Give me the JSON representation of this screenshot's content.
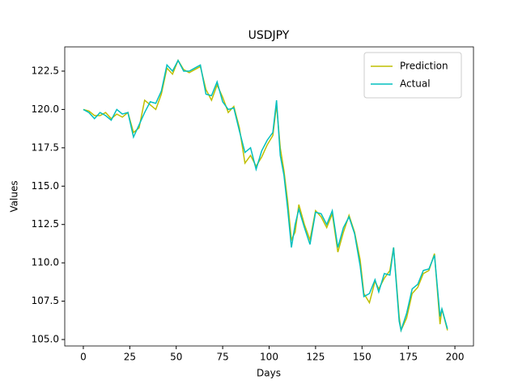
{
  "chart_data": {
    "type": "line",
    "title": "USDJPY",
    "x_label": "Days",
    "y_label": "Values",
    "x": [
      0,
      3,
      6,
      9,
      12,
      15,
      18,
      21,
      24,
      27,
      30,
      33,
      36,
      39,
      42,
      45,
      48,
      51,
      54,
      57,
      60,
      63,
      66,
      69,
      72,
      75,
      78,
      81,
      84,
      87,
      90,
      93,
      96,
      99,
      102,
      104,
      106,
      108,
      110,
      112,
      114,
      116,
      119,
      122,
      125,
      128,
      131,
      134,
      137,
      140,
      143,
      146,
      149,
      151,
      154,
      157,
      159,
      162,
      165,
      167,
      170,
      171,
      174,
      177,
      180,
      183,
      186,
      189,
      192,
      193,
      196
    ],
    "series": [
      {
        "name": "Prediction",
        "color": "#bfbf00",
        "values": [
          120.0,
          119.9,
          119.6,
          119.6,
          119.8,
          119.4,
          119.7,
          119.5,
          119.8,
          118.5,
          118.8,
          120.6,
          120.3,
          120.0,
          121.0,
          122.7,
          122.3,
          123.2,
          122.6,
          122.4,
          122.6,
          122.8,
          121.3,
          120.6,
          121.6,
          120.8,
          119.8,
          120.2,
          118.8,
          116.5,
          117.0,
          116.3,
          116.9,
          117.7,
          118.3,
          120.3,
          117.5,
          116.0,
          114.0,
          111.5,
          112.0,
          113.8,
          112.5,
          111.5,
          113.4,
          113.0,
          112.3,
          113.2,
          110.7,
          112.0,
          113.1,
          112.0,
          110.2,
          108.0,
          107.4,
          108.8,
          108.3,
          109.0,
          109.5,
          111.0,
          106.5,
          105.6,
          106.4,
          108.0,
          108.4,
          109.3,
          109.5,
          110.6,
          106.0,
          107.0,
          105.6
        ]
      },
      {
        "name": "Actual",
        "color": "#00bfbf",
        "values": [
          120.0,
          119.8,
          119.4,
          119.8,
          119.6,
          119.3,
          120.0,
          119.7,
          119.8,
          118.2,
          119.0,
          119.8,
          120.5,
          120.4,
          121.2,
          122.9,
          122.5,
          123.2,
          122.5,
          122.5,
          122.7,
          122.9,
          121.0,
          120.9,
          121.8,
          120.5,
          120.0,
          120.1,
          118.6,
          117.2,
          117.5,
          116.1,
          117.3,
          118.0,
          118.5,
          120.6,
          117.0,
          115.7,
          113.5,
          111.0,
          112.5,
          113.5,
          112.3,
          111.2,
          113.3,
          113.2,
          112.5,
          113.4,
          111.0,
          112.3,
          113.0,
          111.9,
          109.8,
          107.8,
          108.0,
          108.9,
          108.1,
          109.3,
          109.2,
          111.0,
          106.2,
          105.6,
          106.7,
          108.3,
          108.6,
          109.5,
          109.6,
          110.5,
          106.5,
          107.0,
          105.7
        ]
      }
    ],
    "xlim": [
      -10,
      210
    ],
    "ylim": [
      104.58,
      124.08
    ],
    "xticks": [
      0,
      25,
      50,
      75,
      100,
      125,
      150,
      175,
      200
    ],
    "yticks": [
      {
        "value": 105,
        "label": "105.0"
      },
      107.5,
      {
        "value": 110,
        "label": "110.0"
      },
      112.5,
      {
        "value": 115,
        "label": "115.0"
      },
      117.5,
      {
        "value": 120,
        "label": "120.0"
      },
      122.5
    ],
    "legend": "upper right"
  }
}
